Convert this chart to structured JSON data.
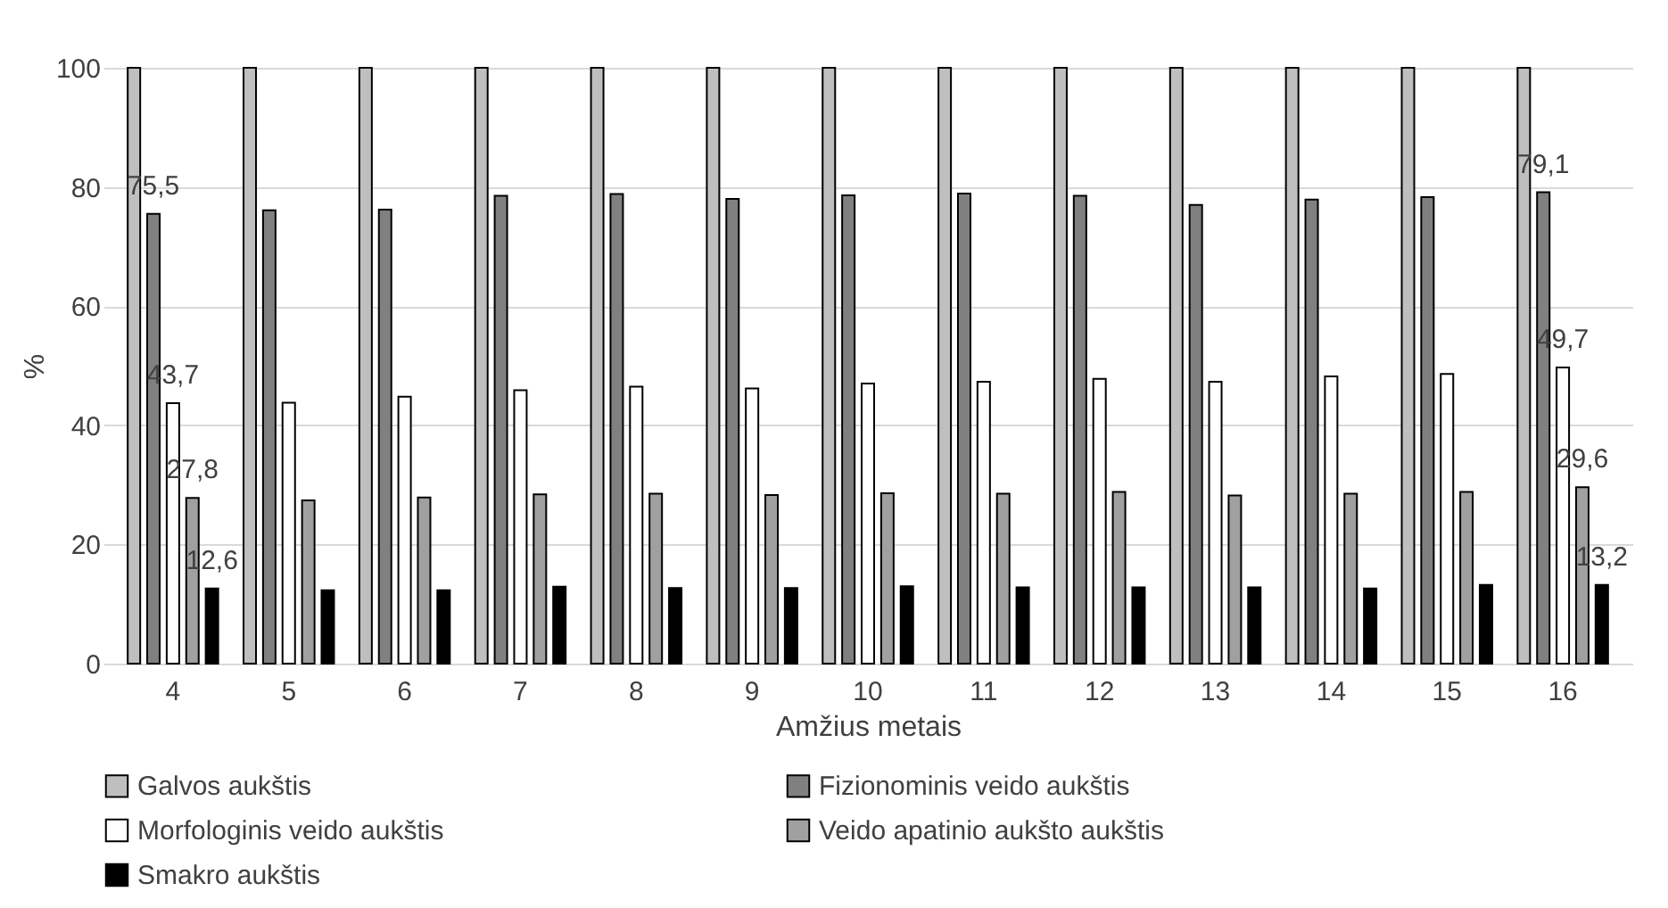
{
  "chart_data": {
    "type": "bar",
    "xlabel": "Amžius metais",
    "ylabel": "%",
    "categories": [
      "4",
      "5",
      "6",
      "7",
      "8",
      "9",
      "10",
      "11",
      "12",
      "13",
      "14",
      "15",
      "16"
    ],
    "series": [
      {
        "name": "Galvos aukštis",
        "color": "#bfbfbf",
        "values": [
          100,
          100,
          100,
          100,
          100,
          100,
          100,
          100,
          100,
          100,
          100,
          100,
          100
        ]
      },
      {
        "name": "Fizionominis veido aukštis",
        "color": "#808080",
        "values": [
          75.5,
          76.1,
          76.2,
          78.5,
          78.8,
          78.0,
          78.6,
          78.9,
          78.5,
          77.0,
          77.9,
          78.3,
          79.1
        ],
        "value_labels": [
          "75,5",
          null,
          null,
          null,
          null,
          null,
          null,
          null,
          null,
          null,
          null,
          null,
          "79,1"
        ]
      },
      {
        "name": "Morfologinis veido aukštis",
        "color": "#ffffff",
        "values": [
          43.7,
          43.8,
          44.8,
          45.9,
          46.5,
          46.2,
          47.0,
          47.3,
          47.8,
          47.3,
          48.2,
          48.6,
          49.7
        ],
        "value_labels": [
          "43,7",
          null,
          null,
          null,
          null,
          null,
          null,
          null,
          null,
          null,
          null,
          null,
          "49,7"
        ]
      },
      {
        "name": "Veido apatinio aukšto aukštis",
        "color": "#a0a0a0",
        "values": [
          27.8,
          27.4,
          27.9,
          28.4,
          28.5,
          28.3,
          28.6,
          28.5,
          28.8,
          28.2,
          28.5,
          28.8,
          29.6
        ],
        "value_labels": [
          "27,8",
          null,
          null,
          null,
          null,
          null,
          null,
          null,
          null,
          null,
          null,
          null,
          "29,6"
        ]
      },
      {
        "name": "Smakro aukštis",
        "color": "#000000",
        "values": [
          12.6,
          12.3,
          12.3,
          12.9,
          12.7,
          12.7,
          13.0,
          12.8,
          12.8,
          12.8,
          12.6,
          13.2,
          13.2
        ],
        "value_labels": [
          "12,6",
          null,
          null,
          null,
          null,
          null,
          null,
          null,
          null,
          null,
          null,
          null,
          "13,2"
        ]
      }
    ],
    "ylim": [
      0,
      100
    ],
    "yticks": [
      0,
      20,
      40,
      60,
      80,
      100
    ],
    "grid": "y",
    "legend": "bottom"
  }
}
